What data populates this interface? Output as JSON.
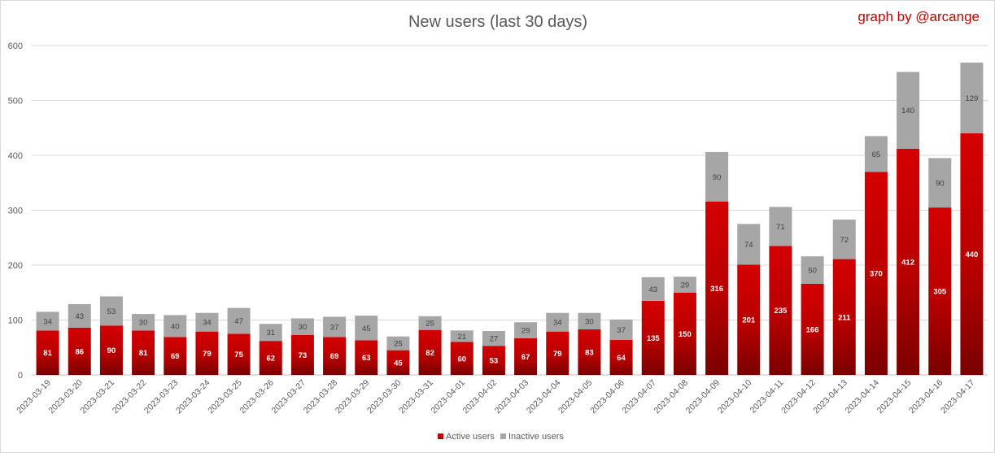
{
  "chart_data": {
    "type": "bar",
    "stacked": true,
    "title": "New users (last 30 days)",
    "credit": "graph by @arcange",
    "xlabel": "",
    "ylabel": "",
    "ylim": [
      0,
      600
    ],
    "yticks": [
      0,
      100,
      200,
      300,
      400,
      500,
      600
    ],
    "grid": true,
    "legend_position": "bottom",
    "categories": [
      "2023-03-19",
      "2023-03-20",
      "2023-03-21",
      "2023-03-22",
      "2023-03-23",
      "2023-03-24",
      "2023-03-25",
      "2023-03-26",
      "2023-03-27",
      "2023-03-28",
      "2023-03-29",
      "2023-03-30",
      "2023-03-31",
      "2023-04-01",
      "2023-04-02",
      "2023-04-03",
      "2023-04-04",
      "2023-04-05",
      "2023-04-06",
      "2023-04-07",
      "2023-04-08",
      "2023-04-09",
      "2023-04-10",
      "2023-04-11",
      "2023-04-12",
      "2023-04-13",
      "2023-04-14",
      "2023-04-15",
      "2023-04-16",
      "2023-04-17"
    ],
    "series": [
      {
        "name": "Active users",
        "color": "#c00000",
        "values": [
          81,
          86,
          90,
          81,
          69,
          79,
          75,
          62,
          73,
          69,
          63,
          45,
          82,
          60,
          53,
          67,
          79,
          83,
          64,
          135,
          150,
          316,
          201,
          235,
          166,
          211,
          370,
          412,
          305,
          440
        ]
      },
      {
        "name": "Inactive users",
        "color": "#a6a6a6",
        "values": [
          34,
          43,
          53,
          30,
          40,
          34,
          47,
          31,
          30,
          37,
          45,
          25,
          25,
          21,
          27,
          29,
          34,
          30,
          37,
          43,
          29,
          90,
          74,
          71,
          50,
          72,
          65,
          140,
          90,
          129
        ]
      }
    ]
  }
}
